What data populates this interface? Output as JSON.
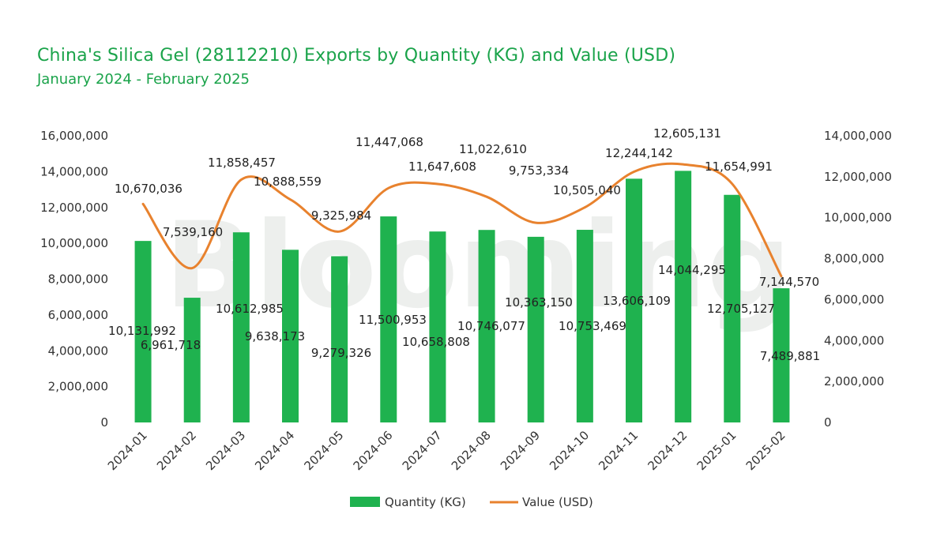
{
  "header": {
    "title": "China's Silica Gel (28112210) Exports by Quantity (KG) and Value (USD)",
    "subtitle": "January 2024 - February 2025"
  },
  "watermark": "Blooming",
  "chart_data": {
    "type": "bar",
    "title": "China's Silica Gel (28112210) Exports by Quantity (KG) and Value (USD)",
    "subtitle": "January 2024 - February 2025",
    "categories": [
      "2024-01",
      "2024-02",
      "2024-03",
      "2024-04",
      "2024-05",
      "2024-06",
      "2024-07",
      "2024-08",
      "2024-09",
      "2024-10",
      "2024-11",
      "2024-12",
      "2025-01",
      "2025-02"
    ],
    "series": [
      {
        "name": "Quantity (KG)",
        "kind": "bar",
        "axis": "left",
        "color": "#1fb24f",
        "values": [
          10131992,
          6961718,
          10612985,
          9638173,
          9279326,
          11500953,
          10658808,
          10746077,
          10363150,
          10753469,
          13606109,
          14044295,
          12705127,
          7489881
        ]
      },
      {
        "name": "Value (USD)",
        "kind": "line",
        "axis": "right",
        "color": "#e8822e",
        "smooth": true,
        "values": [
          10670036,
          7539160,
          11858457,
          10888559,
          9325984,
          11447068,
          11647608,
          11022610,
          9753334,
          10505040,
          12244142,
          12605131,
          11654991,
          7144570
        ]
      }
    ],
    "y_left": {
      "min": 0,
      "max": 16000000,
      "step": 2000000
    },
    "y_right": {
      "min": 0,
      "max": 14000000,
      "step": 2000000
    },
    "legend_position": "bottom",
    "grid": false
  }
}
